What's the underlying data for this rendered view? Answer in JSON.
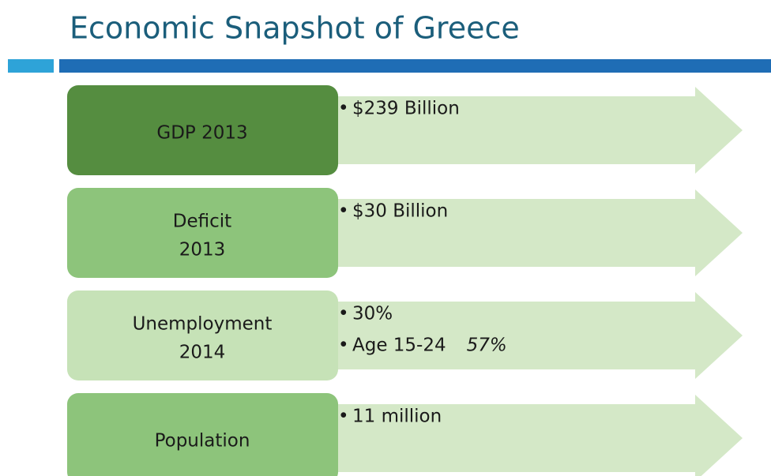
{
  "title": "Economic Snapshot of Greece",
  "rows": [
    {
      "label": [
        "GDP 2013"
      ],
      "bullets": [
        {
          "text": "$239 Billion"
        }
      ]
    },
    {
      "label": [
        "Deficit",
        "2013"
      ],
      "bullets": [
        {
          "text": "$30 Billion"
        }
      ]
    },
    {
      "label": [
        "Unemployment",
        "2014"
      ],
      "bullets": [
        {
          "text": "30%"
        },
        {
          "text": "Age 15-24",
          "emphasis": "57%"
        }
      ]
    },
    {
      "label": [
        "Population"
      ],
      "bullets": [
        {
          "text": "11 million"
        }
      ]
    }
  ]
}
